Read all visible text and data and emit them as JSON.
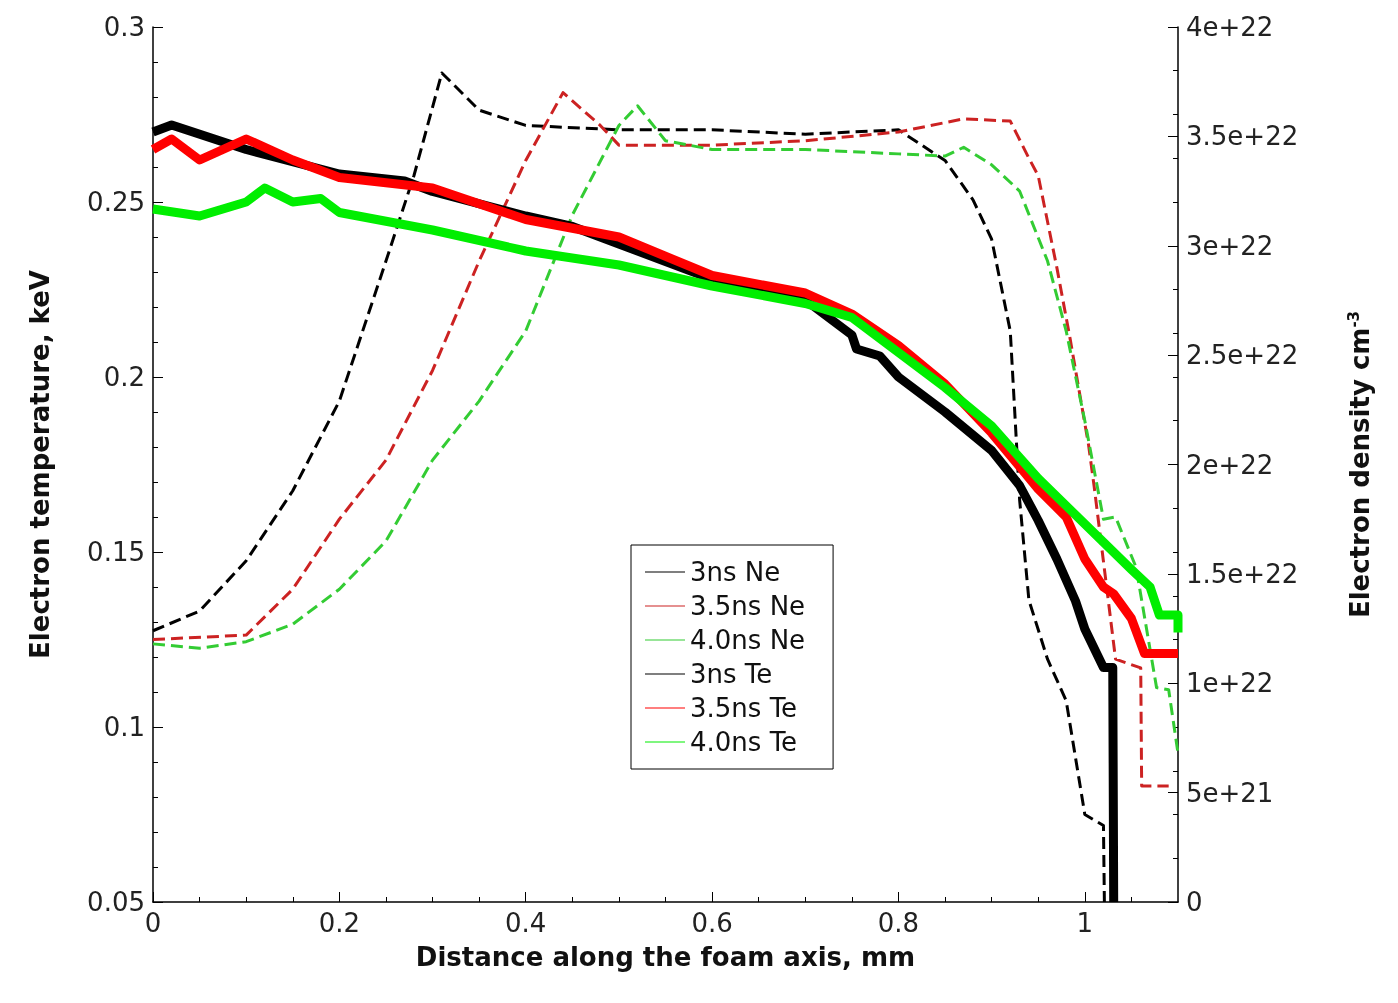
{
  "chart_data": {
    "type": "line",
    "xlabel": "Distance along the foam axis, mm",
    "ylabel": "Electron temperature, keV",
    "y2label": "Electron density cm$^{-3}$",
    "xlim": [
      0,
      1.1
    ],
    "xticks": [
      0,
      0.2,
      0.4,
      0.6,
      0.8,
      1
    ],
    "ylim": [
      0.05,
      0.3
    ],
    "yticks": [
      0.05,
      0.1,
      0.15,
      0.2,
      0.25,
      0.3
    ],
    "y2lim": [
      0,
      4e+22
    ],
    "y2ticks": [
      0,
      {
        "value": 5e+21,
        "label": "5e+21"
      },
      {
        "value": 1e+22,
        "label": "1e+22"
      },
      {
        "value": 1.5e+22,
        "label": "1.5e+22"
      },
      {
        "value": 2e+22,
        "label": "2e+22"
      },
      {
        "value": 2.5e+22,
        "label": "2.5e+22"
      },
      {
        "value": 3e+22,
        "label": "3e+22"
      },
      {
        "value": 3.5e+22,
        "label": "3.5e+22"
      },
      {
        "value": 4e+22,
        "label": "4e+22"
      }
    ],
    "grid": false,
    "legend": "bottom",
    "marker": "none",
    "series": [
      {
        "name": "3ns Ne",
        "color": "#000000",
        "line_style": "dashed",
        "axis": "y2",
        "x": [
          0,
          0.05,
          0.1,
          0.15,
          0.2,
          0.25,
          0.28,
          0.31,
          0.35,
          0.4,
          0.5,
          0.6,
          0.7,
          0.8,
          0.85,
          0.88,
          0.9,
          0.92,
          0.93,
          0.94,
          0.96,
          0.98,
          1.0,
          1.02,
          1.021
        ],
        "values": [
          1.24e+22,
          1.33e+22,
          1.56e+22,
          1.88e+22,
          2.29e+22,
          2.93e+22,
          3.32e+22,
          3.79e+22,
          3.62e+22,
          3.55e+22,
          3.53e+22,
          3.53e+22,
          3.51e+22,
          3.53e+22,
          3.39e+22,
          3.21e+22,
          3.03e+22,
          2.61e+22,
          1.84e+22,
          1.38e+22,
          1.11e+22,
          9.2e+21,
          4e+21,
          3.5e+21,
          0
        ]
      },
      {
        "name": "3.5ns Ne",
        "color": "#cc2222",
        "line_style": "dashed",
        "axis": "y2",
        "x": [
          0,
          0.1,
          0.15,
          0.2,
          0.25,
          0.3,
          0.35,
          0.4,
          0.44,
          0.48,
          0.5,
          0.6,
          0.7,
          0.8,
          0.87,
          0.92,
          0.94,
          0.95,
          0.97,
          0.984,
          1.004,
          1.01,
          1.033,
          1.06,
          1.061,
          1.09
        ],
        "values": [
          1.2e+22,
          1.22e+22,
          1.43e+22,
          1.75e+22,
          2.02e+22,
          2.43e+22,
          2.93e+22,
          3.39e+22,
          3.7e+22,
          3.55e+22,
          3.46e+22,
          3.46e+22,
          3.48e+22,
          3.52e+22,
          3.58e+22,
          3.57e+22,
          3.4e+22,
          3.32e+22,
          2.9e+22,
          2.58e+22,
          2.09e+22,
          1.9e+22,
          1.11e+22,
          1.07e+22,
          5.3e+21,
          5.3e+21
        ]
      },
      {
        "name": "4.0ns Ne",
        "color": "#33cc33",
        "line_style": "dashed",
        "axis": "y2",
        "x": [
          0,
          0.05,
          0.1,
          0.15,
          0.2,
          0.25,
          0.3,
          0.35,
          0.4,
          0.45,
          0.5,
          0.52,
          0.55,
          0.6,
          0.7,
          0.8,
          0.85,
          0.87,
          0.9,
          0.93,
          0.96,
          0.98,
          1.0,
          1.02,
          1.033,
          1.055,
          1.067,
          1.077,
          1.09,
          1.1
        ],
        "values": [
          1.18e+22,
          1.16e+22,
          1.19e+22,
          1.27e+22,
          1.43e+22,
          1.65e+22,
          2.02e+22,
          2.29e+22,
          2.61e+22,
          3.14e+22,
          3.55e+22,
          3.64e+22,
          3.48e+22,
          3.44e+22,
          3.44e+22,
          3.42e+22,
          3.41e+22,
          3.45e+22,
          3.37e+22,
          3.25e+22,
          2.93e+22,
          2.61e+22,
          2.2e+22,
          1.75e+22,
          1.76e+22,
          1.53e+22,
          1.23e+22,
          9.8e+21,
          9.7e+21,
          6.8e+21
        ]
      },
      {
        "name": "3ns Te",
        "color": "#000000",
        "line_style": "solid",
        "x": [
          0,
          0.02,
          0.1,
          0.2,
          0.27,
          0.3,
          0.4,
          0.45,
          0.5,
          0.6,
          0.7,
          0.75,
          0.755,
          0.78,
          0.8,
          0.85,
          0.9,
          0.93,
          0.95,
          0.97,
          0.99,
          1.0,
          1.02,
          1.03,
          1.031
        ],
        "values": [
          0.27,
          0.272,
          0.265,
          0.258,
          0.256,
          0.253,
          0.246,
          0.243,
          0.238,
          0.228,
          0.222,
          0.212,
          0.208,
          0.206,
          0.2,
          0.19,
          0.179,
          0.169,
          0.159,
          0.148,
          0.136,
          0.128,
          0.117,
          0.117,
          0.05
        ]
      },
      {
        "name": "3.5ns Te",
        "color": "#ff0000",
        "line_style": "solid",
        "x": [
          0,
          0.02,
          0.05,
          0.1,
          0.15,
          0.2,
          0.3,
          0.4,
          0.5,
          0.6,
          0.7,
          0.75,
          0.8,
          0.85,
          0.9,
          0.95,
          0.98,
          1.0,
          1.02,
          1.031,
          1.05,
          1.064,
          1.1
        ],
        "values": [
          0.265,
          0.268,
          0.262,
          0.268,
          0.262,
          0.257,
          0.254,
          0.245,
          0.24,
          0.229,
          0.224,
          0.218,
          0.209,
          0.198,
          0.184,
          0.168,
          0.16,
          0.148,
          0.14,
          0.138,
          0.131,
          0.121,
          0.121
        ]
      },
      {
        "name": "4.0ns Te",
        "color": "#00ee00",
        "line_style": "solid",
        "x": [
          0,
          0.05,
          0.1,
          0.12,
          0.15,
          0.18,
          0.2,
          0.3,
          0.4,
          0.5,
          0.6,
          0.7,
          0.75,
          0.8,
          0.85,
          0.9,
          0.95,
          1.0,
          1.05,
          1.07,
          1.08,
          1.1,
          1.1
        ],
        "values": [
          0.248,
          0.246,
          0.25,
          0.254,
          0.25,
          0.251,
          0.247,
          0.242,
          0.236,
          0.232,
          0.226,
          0.221,
          0.217,
          0.207,
          0.197,
          0.186,
          0.171,
          0.158,
          0.145,
          0.14,
          0.132,
          0.132,
          0.127
        ]
      }
    ]
  }
}
